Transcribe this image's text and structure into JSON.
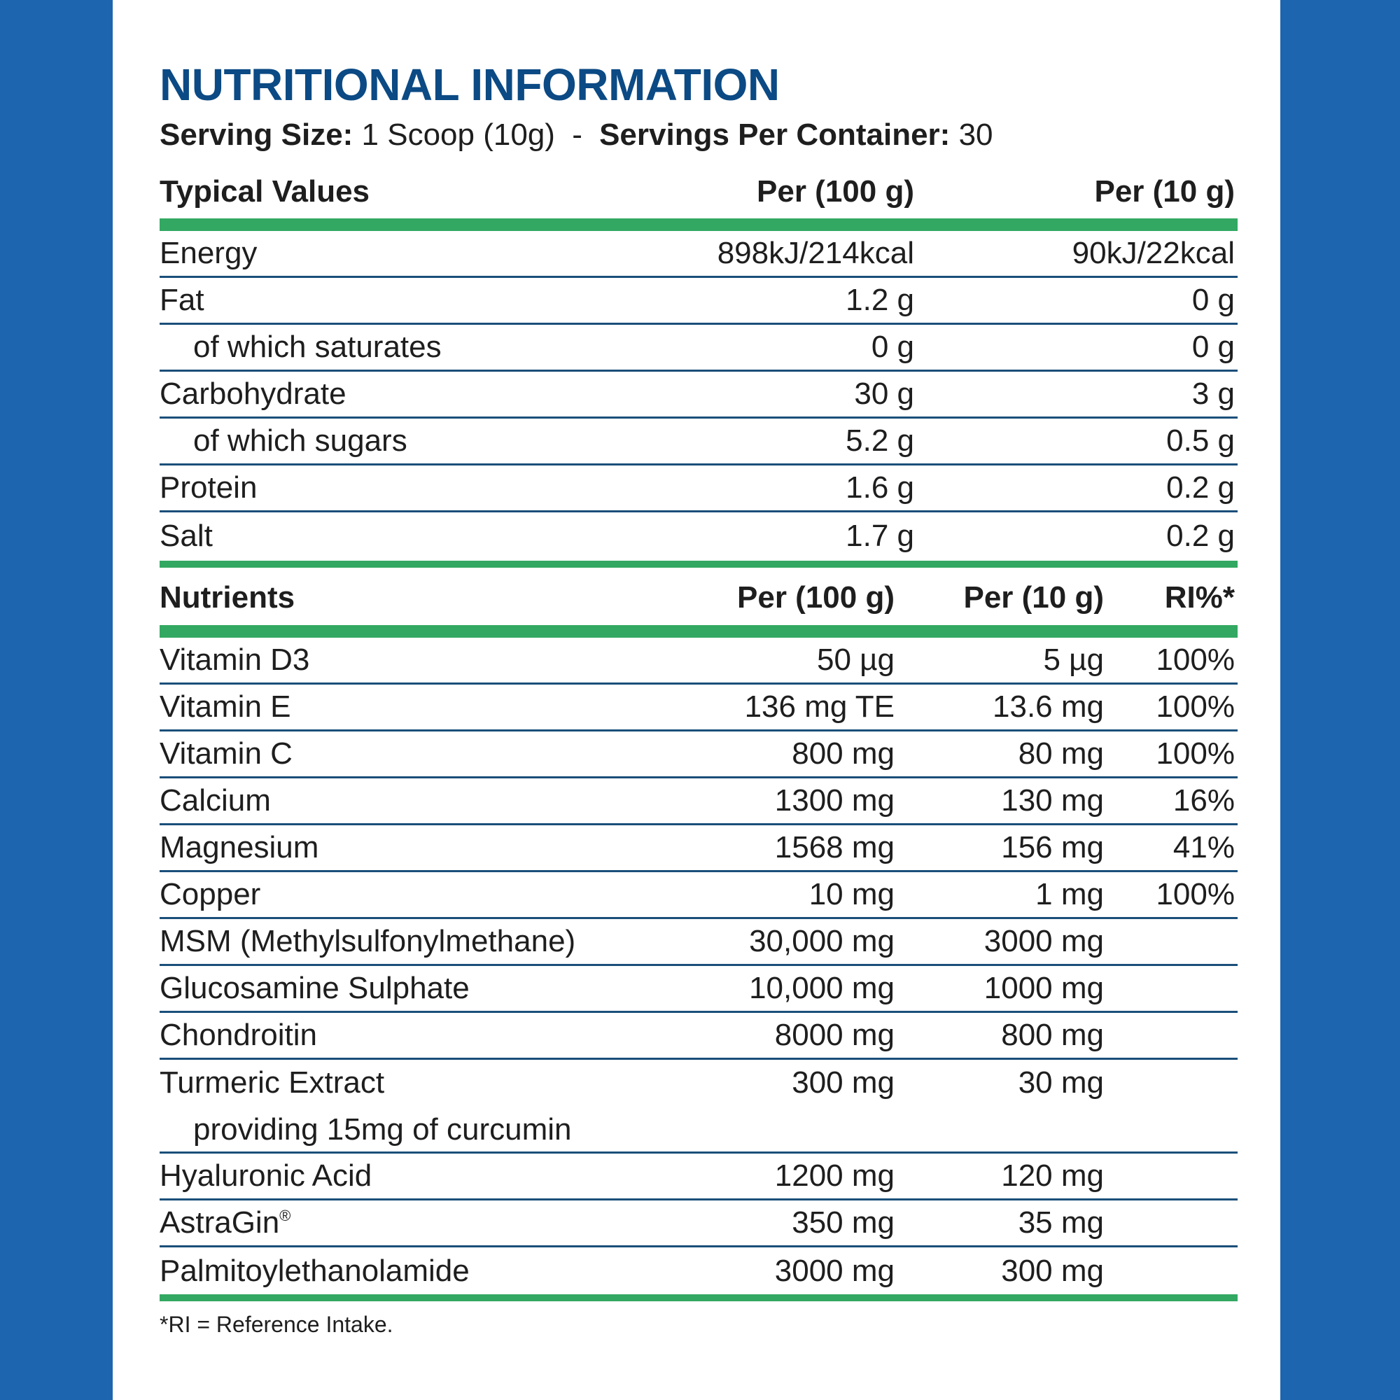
{
  "title": "NUTRITIONAL INFORMATION",
  "serving": {
    "size_label": "Serving Size:",
    "size_value": "1 Scoop (10g)",
    "separator": "-",
    "per_container_label": "Servings Per Container:",
    "per_container_value": "30"
  },
  "typical": {
    "headers": [
      "Typical Values",
      "Per (100 g)",
      "Per (10 g)"
    ],
    "rows": [
      {
        "label": "Energy",
        "per100": "898kJ/214kcal",
        "per10": "90kJ/22kcal",
        "indent": false
      },
      {
        "label": "Fat",
        "per100": "1.2 g",
        "per10": "0 g",
        "indent": false
      },
      {
        "label": "of which saturates",
        "per100": "0 g",
        "per10": "0 g",
        "indent": true
      },
      {
        "label": "Carbohydrate",
        "per100": "30 g",
        "per10": "3 g",
        "indent": false
      },
      {
        "label": "of which sugars",
        "per100": "5.2 g",
        "per10": "0.5 g",
        "indent": true
      },
      {
        "label": "Protein",
        "per100": "1.6 g",
        "per10": "0.2 g",
        "indent": false
      },
      {
        "label": "Salt",
        "per100": "1.7 g",
        "per10": "0.2 g",
        "indent": false
      }
    ]
  },
  "nutrients": {
    "headers": [
      "Nutrients",
      "Per (100 g)",
      "Per (10 g)",
      "RI%*"
    ],
    "rows": [
      {
        "label": "Vitamin D3",
        "per100": "50 µg",
        "per10": "5 µg",
        "ri": "100%"
      },
      {
        "label": "Vitamin E",
        "per100": "136 mg TE",
        "per10": "13.6 mg",
        "ri": "100%"
      },
      {
        "label": "Vitamin C",
        "per100": "800 mg",
        "per10": "80 mg",
        "ri": "100%"
      },
      {
        "label": "Calcium",
        "per100": "1300 mg",
        "per10": "130 mg",
        "ri": "16%"
      },
      {
        "label": "Magnesium",
        "per100": "1568 mg",
        "per10": "156 mg",
        "ri": "41%"
      },
      {
        "label": "Copper",
        "per100": "10 mg",
        "per10": "1 mg",
        "ri": "100%"
      },
      {
        "label": "MSM (Methylsulfonylmethane)",
        "per100": "30,000 mg",
        "per10": "3000 mg",
        "ri": ""
      },
      {
        "label": "Glucosamine Sulphate",
        "per100": "10,000 mg",
        "per10": "1000 mg",
        "ri": ""
      },
      {
        "label": "Chondroitin",
        "per100": "8000 mg",
        "per10": "800 mg",
        "ri": ""
      },
      {
        "label": "Turmeric Extract",
        "sublabel": "providing 15mg of curcumin",
        "per100": "300 mg",
        "per10": "30 mg",
        "ri": ""
      },
      {
        "label": "Hyaluronic Acid",
        "per100": "1200 mg",
        "per10": "120 mg",
        "ri": ""
      },
      {
        "label": "AstraGin",
        "mark": "®",
        "per100": "350 mg",
        "per10": "35 mg",
        "ri": ""
      },
      {
        "label": "Palmitoylethanolamide",
        "per100": "3000 mg",
        "per10": "300 mg",
        "ri": ""
      }
    ]
  },
  "footnote": "*RI = Reference Intake.",
  "colors": {
    "border": "#1e65b0",
    "title": "#0b4a84",
    "green_bar": "#33a862",
    "row_line": "#1a4f7a"
  }
}
